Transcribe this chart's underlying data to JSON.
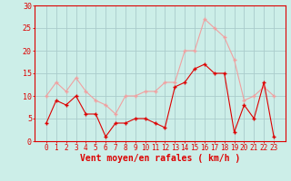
{
  "x": [
    0,
    1,
    2,
    3,
    4,
    5,
    6,
    7,
    8,
    9,
    10,
    11,
    12,
    13,
    14,
    15,
    16,
    17,
    18,
    19,
    20,
    21,
    22,
    23
  ],
  "mean_wind": [
    4,
    9,
    8,
    10,
    6,
    6,
    1,
    4,
    4,
    5,
    5,
    4,
    3,
    12,
    13,
    16,
    17,
    15,
    15,
    2,
    8,
    5,
    13,
    1
  ],
  "gust_wind": [
    10,
    13,
    11,
    14,
    11,
    9,
    8,
    6,
    10,
    10,
    11,
    11,
    13,
    13,
    20,
    20,
    27,
    25,
    23,
    18,
    9,
    10,
    12,
    10
  ],
  "mean_color": "#dd0000",
  "gust_color": "#f0a0a0",
  "bg_color": "#cceee8",
  "grid_color": "#aacccc",
  "axis_color": "#dd0000",
  "xlabel": "Vent moyen/en rafales ( km/h )",
  "ylim": [
    0,
    30
  ],
  "yticks": [
    0,
    5,
    10,
    15,
    20,
    25,
    30
  ],
  "xlabel_fontsize": 7,
  "tick_fontsize": 5.5
}
